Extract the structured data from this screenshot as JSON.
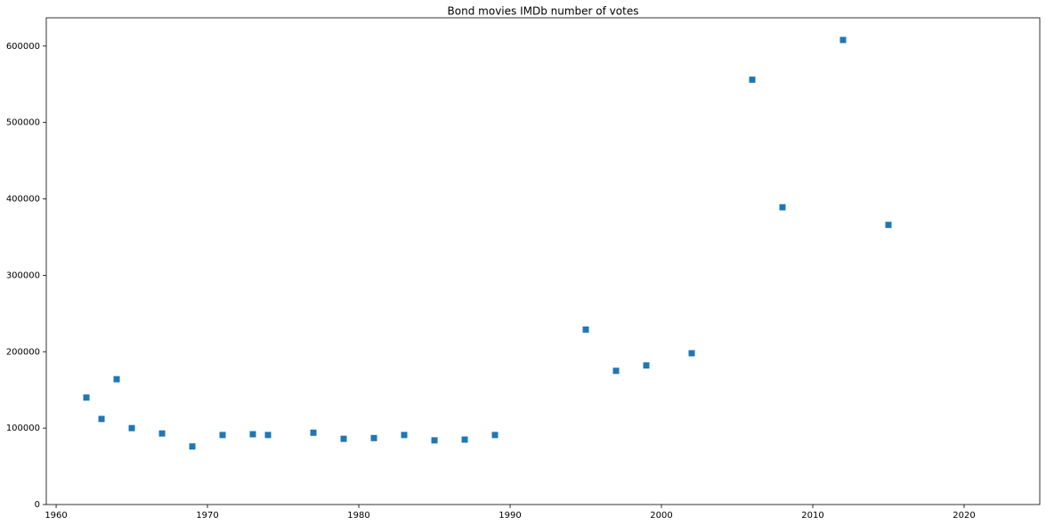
{
  "chart_data": {
    "type": "scatter",
    "title": "Bond movies IMDb number of votes",
    "x": [
      1962,
      1963,
      1964,
      1965,
      1967,
      1969,
      1971,
      1973,
      1974,
      1977,
      1979,
      1981,
      1983,
      1985,
      1987,
      1989,
      1995,
      1997,
      1999,
      2002,
      2006,
      2008,
      2012,
      2015
    ],
    "values": [
      140000,
      112000,
      164000,
      100000,
      93000,
      76000,
      91000,
      92000,
      91000,
      94000,
      86000,
      87000,
      91000,
      84000,
      85000,
      91000,
      229000,
      175000,
      182000,
      198000,
      556000,
      389000,
      608000,
      366000
    ],
    "color": "#1f77b4",
    "marker": "square",
    "xlim": [
      1959.35,
      2025
    ],
    "xticks": [
      1960,
      1970,
      1980,
      1990,
      2000,
      2010,
      2020
    ],
    "ylim": [
      0,
      637000
    ],
    "yticks": [
      0,
      100000,
      200000,
      300000,
      400000,
      500000,
      600000
    ]
  }
}
